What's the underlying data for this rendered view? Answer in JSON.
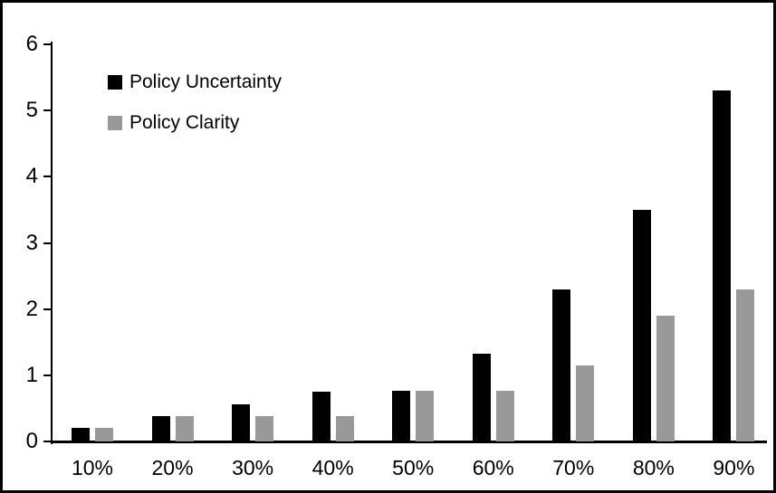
{
  "chart_data": {
    "type": "bar",
    "title": "",
    "xlabel": "",
    "ylabel": "",
    "categories": [
      "10%",
      "20%",
      "30%",
      "40%",
      "50%",
      "60%",
      "70%",
      "80%",
      "90%"
    ],
    "series": [
      {
        "name": "Policy Uncertainty",
        "color": "#000000",
        "values": [
          0.2,
          0.38,
          0.56,
          0.75,
          0.77,
          1.33,
          2.3,
          3.5,
          5.3
        ]
      },
      {
        "name": "Policy Clarity",
        "color": "#999999",
        "values": [
          0.2,
          0.38,
          0.38,
          0.38,
          0.77,
          0.77,
          1.15,
          1.9,
          2.3
        ]
      }
    ],
    "ylim": [
      0,
      6
    ],
    "yticks": [
      0,
      1,
      2,
      3,
      4,
      5,
      6
    ],
    "grid": false,
    "legend_position": "top-left"
  },
  "colors": {
    "background": "#ffffff",
    "axis": "#000000",
    "frame_border": "#000000"
  }
}
